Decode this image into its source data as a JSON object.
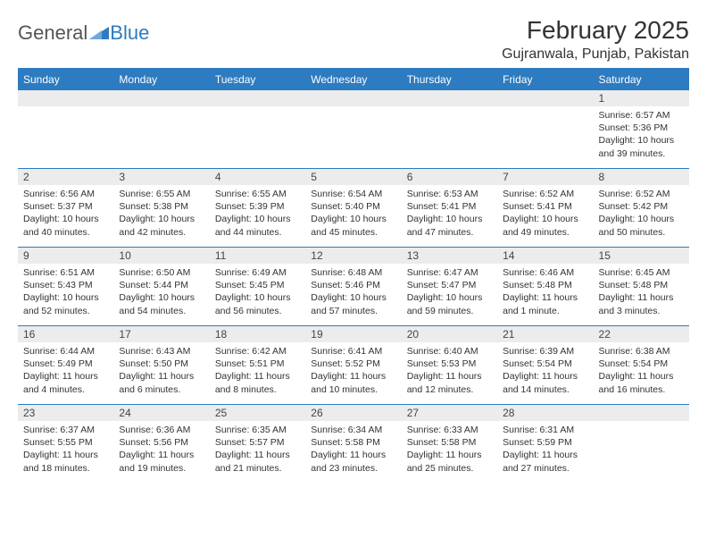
{
  "brand": {
    "part1": "General",
    "part2": "Blue"
  },
  "title": "February 2025",
  "location": "Gujranwala, Punjab, Pakistan",
  "colors": {
    "brand_blue": "#2d7bc0",
    "header_row": "#2d7bc0",
    "daynum_bg": "#ececec",
    "text": "#333333",
    "cell_border": "#2d7bc0"
  },
  "day_headers": [
    "Sunday",
    "Monday",
    "Tuesday",
    "Wednesday",
    "Thursday",
    "Friday",
    "Saturday"
  ],
  "weeks": [
    [
      {
        "n": "",
        "sunrise": "",
        "sunset": "",
        "daylight": ""
      },
      {
        "n": "",
        "sunrise": "",
        "sunset": "",
        "daylight": ""
      },
      {
        "n": "",
        "sunrise": "",
        "sunset": "",
        "daylight": ""
      },
      {
        "n": "",
        "sunrise": "",
        "sunset": "",
        "daylight": ""
      },
      {
        "n": "",
        "sunrise": "",
        "sunset": "",
        "daylight": ""
      },
      {
        "n": "",
        "sunrise": "",
        "sunset": "",
        "daylight": ""
      },
      {
        "n": "1",
        "sunrise": "Sunrise: 6:57 AM",
        "sunset": "Sunset: 5:36 PM",
        "daylight": "Daylight: 10 hours and 39 minutes."
      }
    ],
    [
      {
        "n": "2",
        "sunrise": "Sunrise: 6:56 AM",
        "sunset": "Sunset: 5:37 PM",
        "daylight": "Daylight: 10 hours and 40 minutes."
      },
      {
        "n": "3",
        "sunrise": "Sunrise: 6:55 AM",
        "sunset": "Sunset: 5:38 PM",
        "daylight": "Daylight: 10 hours and 42 minutes."
      },
      {
        "n": "4",
        "sunrise": "Sunrise: 6:55 AM",
        "sunset": "Sunset: 5:39 PM",
        "daylight": "Daylight: 10 hours and 44 minutes."
      },
      {
        "n": "5",
        "sunrise": "Sunrise: 6:54 AM",
        "sunset": "Sunset: 5:40 PM",
        "daylight": "Daylight: 10 hours and 45 minutes."
      },
      {
        "n": "6",
        "sunrise": "Sunrise: 6:53 AM",
        "sunset": "Sunset: 5:41 PM",
        "daylight": "Daylight: 10 hours and 47 minutes."
      },
      {
        "n": "7",
        "sunrise": "Sunrise: 6:52 AM",
        "sunset": "Sunset: 5:41 PM",
        "daylight": "Daylight: 10 hours and 49 minutes."
      },
      {
        "n": "8",
        "sunrise": "Sunrise: 6:52 AM",
        "sunset": "Sunset: 5:42 PM",
        "daylight": "Daylight: 10 hours and 50 minutes."
      }
    ],
    [
      {
        "n": "9",
        "sunrise": "Sunrise: 6:51 AM",
        "sunset": "Sunset: 5:43 PM",
        "daylight": "Daylight: 10 hours and 52 minutes."
      },
      {
        "n": "10",
        "sunrise": "Sunrise: 6:50 AM",
        "sunset": "Sunset: 5:44 PM",
        "daylight": "Daylight: 10 hours and 54 minutes."
      },
      {
        "n": "11",
        "sunrise": "Sunrise: 6:49 AM",
        "sunset": "Sunset: 5:45 PM",
        "daylight": "Daylight: 10 hours and 56 minutes."
      },
      {
        "n": "12",
        "sunrise": "Sunrise: 6:48 AM",
        "sunset": "Sunset: 5:46 PM",
        "daylight": "Daylight: 10 hours and 57 minutes."
      },
      {
        "n": "13",
        "sunrise": "Sunrise: 6:47 AM",
        "sunset": "Sunset: 5:47 PM",
        "daylight": "Daylight: 10 hours and 59 minutes."
      },
      {
        "n": "14",
        "sunrise": "Sunrise: 6:46 AM",
        "sunset": "Sunset: 5:48 PM",
        "daylight": "Daylight: 11 hours and 1 minute."
      },
      {
        "n": "15",
        "sunrise": "Sunrise: 6:45 AM",
        "sunset": "Sunset: 5:48 PM",
        "daylight": "Daylight: 11 hours and 3 minutes."
      }
    ],
    [
      {
        "n": "16",
        "sunrise": "Sunrise: 6:44 AM",
        "sunset": "Sunset: 5:49 PM",
        "daylight": "Daylight: 11 hours and 4 minutes."
      },
      {
        "n": "17",
        "sunrise": "Sunrise: 6:43 AM",
        "sunset": "Sunset: 5:50 PM",
        "daylight": "Daylight: 11 hours and 6 minutes."
      },
      {
        "n": "18",
        "sunrise": "Sunrise: 6:42 AM",
        "sunset": "Sunset: 5:51 PM",
        "daylight": "Daylight: 11 hours and 8 minutes."
      },
      {
        "n": "19",
        "sunrise": "Sunrise: 6:41 AM",
        "sunset": "Sunset: 5:52 PM",
        "daylight": "Daylight: 11 hours and 10 minutes."
      },
      {
        "n": "20",
        "sunrise": "Sunrise: 6:40 AM",
        "sunset": "Sunset: 5:53 PM",
        "daylight": "Daylight: 11 hours and 12 minutes."
      },
      {
        "n": "21",
        "sunrise": "Sunrise: 6:39 AM",
        "sunset": "Sunset: 5:54 PM",
        "daylight": "Daylight: 11 hours and 14 minutes."
      },
      {
        "n": "22",
        "sunrise": "Sunrise: 6:38 AM",
        "sunset": "Sunset: 5:54 PM",
        "daylight": "Daylight: 11 hours and 16 minutes."
      }
    ],
    [
      {
        "n": "23",
        "sunrise": "Sunrise: 6:37 AM",
        "sunset": "Sunset: 5:55 PM",
        "daylight": "Daylight: 11 hours and 18 minutes."
      },
      {
        "n": "24",
        "sunrise": "Sunrise: 6:36 AM",
        "sunset": "Sunset: 5:56 PM",
        "daylight": "Daylight: 11 hours and 19 minutes."
      },
      {
        "n": "25",
        "sunrise": "Sunrise: 6:35 AM",
        "sunset": "Sunset: 5:57 PM",
        "daylight": "Daylight: 11 hours and 21 minutes."
      },
      {
        "n": "26",
        "sunrise": "Sunrise: 6:34 AM",
        "sunset": "Sunset: 5:58 PM",
        "daylight": "Daylight: 11 hours and 23 minutes."
      },
      {
        "n": "27",
        "sunrise": "Sunrise: 6:33 AM",
        "sunset": "Sunset: 5:58 PM",
        "daylight": "Daylight: 11 hours and 25 minutes."
      },
      {
        "n": "28",
        "sunrise": "Sunrise: 6:31 AM",
        "sunset": "Sunset: 5:59 PM",
        "daylight": "Daylight: 11 hours and 27 minutes."
      },
      {
        "n": "",
        "sunrise": "",
        "sunset": "",
        "daylight": ""
      }
    ]
  ]
}
